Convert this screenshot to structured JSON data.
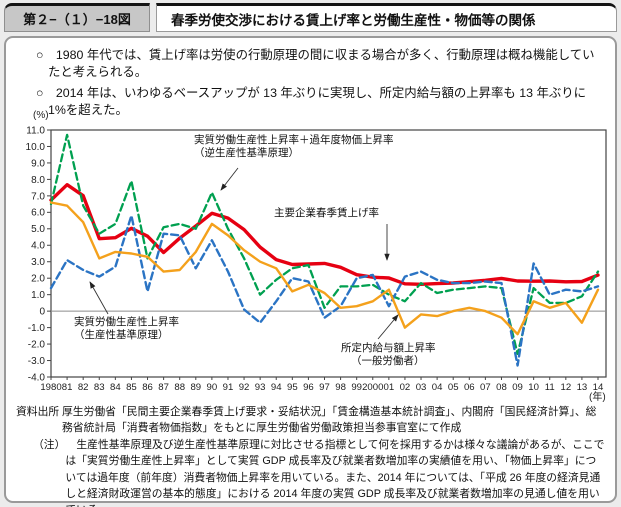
{
  "figure": {
    "number": "第２−（１）−18図",
    "title": "春季労使交渉における賃上げ率と労働生産性・物価等の関係"
  },
  "bullets": [
    "○　1980 年代では、賃上げ率は労使の行動原理の間に収まる場合が多く、行動原理は概ね機能していたと考えられる。",
    "○　2014 年は、いわゆるベースアップが 13 年ぶりに実現し、所定内給与額の上昇率も 13 年ぶりに1%を超えた。"
  ],
  "chart": {
    "y_unit_label": "(%)",
    "x_unit_label": "(年)",
    "annotations": {
      "a1": {
        "line1": "実質労働生産性上昇率＋過年度物価上昇率",
        "line2": "（逆生産性基準原理）"
      },
      "a2": {
        "line1": "主要企業春季賃上げ率"
      },
      "a3": {
        "line1": "実質労働生産性上昇率",
        "line2": "（生産性基準原理）"
      },
      "a4": {
        "line1": "所定内給与額上昇率",
        "line2": "（一般労働者）"
      }
    }
  },
  "chart_data": {
    "type": "line",
    "title": "春季労使交渉における賃上げ率と労働生産性・物価等の関係",
    "x_tick_labels": [
      "1980",
      "81",
      "82",
      "83",
      "84",
      "85",
      "86",
      "87",
      "88",
      "89",
      "90",
      "91",
      "92",
      "93",
      "94",
      "95",
      "96",
      "97",
      "98",
      "99",
      "2000",
      "01",
      "02",
      "03",
      "04",
      "05",
      "06",
      "07",
      "08",
      "09",
      "10",
      "11",
      "12",
      "13",
      "14"
    ],
    "ylim": [
      -4.0,
      11.0
    ],
    "y_tick_values": [
      11,
      10,
      9,
      8,
      7,
      6,
      5,
      4,
      3,
      2,
      1,
      0,
      -1,
      -2,
      -3,
      -4
    ],
    "y_tick_labels": [
      "11.0",
      "10.0",
      "9.0",
      "8.0",
      "7.0",
      "6.0",
      "5.0",
      "4.0",
      "3.0",
      "2.0",
      "1.0",
      "0",
      "-1.0",
      "-2.0",
      "-3.0",
      "-4.0"
    ],
    "grid": "zero-line-only",
    "legend": "inline-annotations",
    "series": [
      {
        "key": "shunto-wage-rate",
        "name": "主要企業春季賃上げ率",
        "color": "#e60012",
        "style": "solid",
        "line_width": 3.4,
        "values": [
          6.74,
          7.68,
          7.01,
          4.4,
          4.46,
          5.03,
          4.55,
          3.56,
          4.43,
          5.17,
          5.94,
          5.65,
          4.95,
          3.89,
          3.13,
          2.83,
          2.86,
          2.9,
          2.66,
          2.21,
          2.06,
          2.01,
          1.66,
          1.63,
          1.67,
          1.71,
          1.79,
          1.87,
          1.99,
          1.83,
          1.82,
          1.83,
          1.78,
          1.8,
          2.19
        ]
      },
      {
        "key": "inverse-productivity-principle",
        "name": "実質労働生産性上昇率＋過年度物価上昇率（逆生産性基準原理）",
        "color": "#00a050",
        "style": "dashed",
        "line_width": 2.3,
        "values": [
          6.5,
          10.7,
          6.4,
          4.7,
          5.3,
          7.9,
          3.2,
          5.1,
          5.3,
          5.0,
          7.2,
          5.0,
          3.2,
          1.0,
          1.9,
          2.6,
          2.8,
          0.2,
          1.5,
          1.5,
          1.6,
          1.0,
          0.6,
          1.7,
          1.1,
          1.3,
          1.4,
          1.5,
          1.4,
          -2.6,
          1.4,
          0.5,
          0.5,
          0.9,
          2.4
        ]
      },
      {
        "key": "productivity-principle",
        "name": "実質労働生産性上昇率（生産性基準原理）",
        "color": "#2b74c4",
        "style": "dashed",
        "line_width": 2.4,
        "values": [
          1.4,
          3.1,
          2.5,
          2.1,
          2.7,
          5.8,
          1.2,
          4.7,
          4.6,
          2.6,
          4.3,
          2.4,
          0.1,
          -0.7,
          0.6,
          2.0,
          1.8,
          -0.4,
          0.3,
          2.0,
          2.2,
          0.3,
          2.1,
          2.4,
          1.9,
          1.7,
          1.7,
          1.8,
          1.7,
          -3.3,
          2.9,
          1.0,
          1.3,
          1.2,
          1.5
        ]
      },
      {
        "key": "scheduled-salary-increase",
        "name": "所定内給与額上昇率（一般労働者）",
        "color": "#f4a11c",
        "style": "solid",
        "line_width": 2.4,
        "values": [
          6.6,
          6.4,
          5.4,
          3.2,
          3.6,
          3.5,
          3.3,
          2.4,
          2.5,
          3.6,
          5.3,
          4.6,
          3.7,
          3.0,
          2.6,
          1.2,
          1.6,
          1.1,
          0.2,
          0.3,
          0.6,
          1.3,
          -1.0,
          -0.2,
          -0.3,
          0.0,
          0.2,
          0.0,
          -0.4,
          -1.4,
          0.6,
          0.2,
          0.5,
          -0.7,
          1.3
        ]
      }
    ]
  },
  "notes": {
    "source_label": "資料出所",
    "source_text": "厚生労働省「民間主要企業春季賃上げ要求・妥結状況」「賃金構造基本統計調査」、内閣府「国民経済計算」、総務省統計局「消費者物価指数」をもとに厚生労働省労働政策担当参事官室にて作成",
    "note_label": "（注）",
    "note_text": "生産性基準原理及び逆生産性基準原理に対比させる指標として何を採用するかは様々な議論があるが、ここでは「実質労働生産性上昇率」として実質 GDP 成長率及び就業者数増加率の実績値を用い、「物価上昇率」については過年度（前年度）消費者物価上昇率を用いている。また、2014 年については、「平成 26 年度の経済見通しと経済財政運営の基本的態度」における 2014 年度の実質 GDP 成長率及び就業者数増加率の見通し値を用いている。"
  }
}
